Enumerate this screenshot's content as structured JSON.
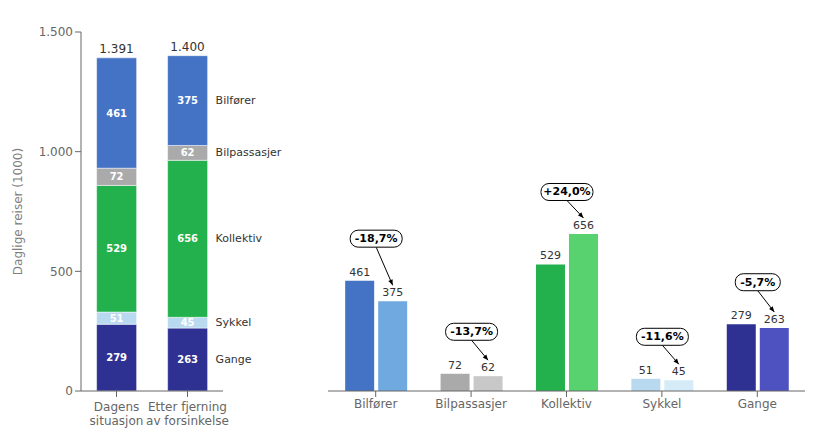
{
  "chart_data": [
    {
      "type": "bar",
      "stacked": true,
      "data_labels": true,
      "categories": [
        "Dagens\nsituasjon",
        "Etter fjerning\nav forsinkelse"
      ],
      "series": [
        {
          "name": "Gange",
          "color": "#2e3192",
          "values": [
            279,
            263
          ]
        },
        {
          "name": "Sykkel",
          "color": "#b8d9f0",
          "values": [
            51,
            45
          ]
        },
        {
          "name": "Kollektiv",
          "color": "#22b14c",
          "values": [
            529,
            656
          ]
        },
        {
          "name": "Bilpassasjer",
          "color": "#aaaaaa",
          "values": [
            72,
            62
          ]
        },
        {
          "name": "Bilfører",
          "color": "#4472c4",
          "values": [
            461,
            375
          ]
        }
      ],
      "totals": [
        1391,
        1400
      ],
      "total_labels": [
        "1.391",
        "1.400"
      ],
      "ylabel": "Daglige reiser (1000)",
      "ylim": [
        0,
        1500
      ],
      "yticks": [
        0,
        500,
        {
          "value": 1000,
          "label": "1.000"
        },
        {
          "value": 1500,
          "label": "1.500"
        }
      ],
      "grid": false
    },
    {
      "type": "bar",
      "data_labels": true,
      "categories": [
        "Bilfører",
        "Bilpassasjer",
        "Kollektiv",
        "Sykkel",
        "Gange"
      ],
      "series": [
        {
          "colors": [
            "#4472c4",
            "#aaaaaa",
            "#22b14c",
            "#b8d9f0",
            "#2e3192"
          ],
          "values": [
            461,
            72,
            529,
            51,
            279
          ]
        },
        {
          "colors": [
            "#70a8e0",
            "#c8c8c8",
            "#57d26e",
            "#d5ecf8",
            "#4e52c0"
          ],
          "values": [
            375,
            62,
            656,
            45,
            263
          ]
        }
      ],
      "annotations": [
        "-18,7%",
        "-13,7%",
        "+24,0%",
        "-11,6%",
        "-5,7%"
      ],
      "ylim": [
        0,
        1500
      ],
      "yticks": [
        0,
        500,
        1000,
        1500
      ],
      "tick_labels": "x",
      "grid": false
    }
  ]
}
